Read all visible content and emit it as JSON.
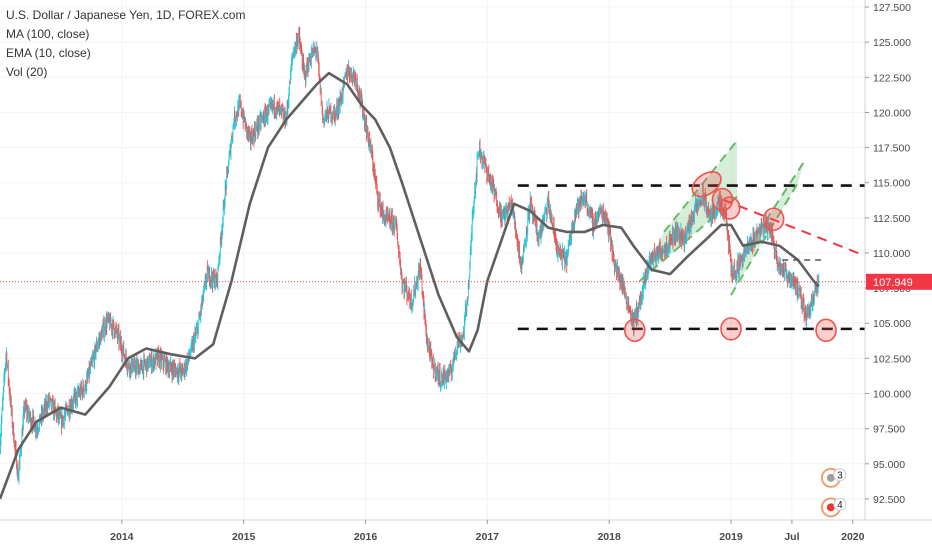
{
  "legend": {
    "title": "U.S. Dollar / Japanese Yen, 1D, FOREX.com",
    "ma": "MA (100, close)",
    "ema": "EMA (10, close)",
    "vol": "Vol (20)"
  },
  "colors": {
    "up": "#26c6da",
    "down": "#ef5350",
    "ma_line": "#5f5f5f",
    "ema_line": "#6d6d6d",
    "price_line": "#f23645",
    "channel_fill": "#a5d6a7",
    "channel_dash": "#66bb6a",
    "marker": "#ef5350",
    "level_line": "#111111"
  },
  "chart_data": {
    "type": "line",
    "symbol": "U.S. Dollar / Japanese Yen",
    "timeframe": "1D",
    "ylim": [
      91,
      128
    ],
    "y_ticks": [
      "127.500",
      "125.000",
      "122.500",
      "120.000",
      "117.500",
      "115.000",
      "112.500",
      "110.000",
      "107.500",
      "105.000",
      "102.500",
      "100.000",
      "97.500",
      "95.000",
      "92.500"
    ],
    "y_tick_values": [
      127.5,
      125,
      122.5,
      120,
      117.5,
      115,
      112.5,
      110,
      107.5,
      105,
      102.5,
      100,
      97.5,
      95,
      92.5
    ],
    "xlim": [
      2013.0,
      2020.1
    ],
    "x_ticks": [
      "2014",
      "2015",
      "2016",
      "2017",
      "2018",
      "2019",
      "Jul",
      "2020"
    ],
    "x_tick_values": [
      2014.0,
      2015.0,
      2016.0,
      2017.0,
      2018.0,
      2019.0,
      2019.5,
      2020.0
    ],
    "last_price": 107.949,
    "last_price_label": "107.949",
    "price_path": [
      [
        2013.0,
        96.5
      ],
      [
        2013.05,
        103.0
      ],
      [
        2013.1,
        98.0
      ],
      [
        2013.15,
        94.0
      ],
      [
        2013.2,
        99.0
      ],
      [
        2013.3,
        97.5
      ],
      [
        2013.4,
        99.5
      ],
      [
        2013.5,
        98.0
      ],
      [
        2013.6,
        99.5
      ],
      [
        2013.7,
        100.5
      ],
      [
        2013.8,
        103.5
      ],
      [
        2013.88,
        105.2
      ],
      [
        2013.95,
        104.5
      ],
      [
        2014.05,
        102.0
      ],
      [
        2014.15,
        101.8
      ],
      [
        2014.3,
        102.5
      ],
      [
        2014.4,
        101.8
      ],
      [
        2014.5,
        101.5
      ],
      [
        2014.55,
        102.5
      ],
      [
        2014.62,
        104.5
      ],
      [
        2014.7,
        108.5
      ],
      [
        2014.78,
        108.0
      ],
      [
        2014.85,
        114.5
      ],
      [
        2014.92,
        119.5
      ],
      [
        2014.97,
        120.5
      ],
      [
        2015.05,
        118.0
      ],
      [
        2015.15,
        119.5
      ],
      [
        2015.25,
        120.5
      ],
      [
        2015.35,
        119.5
      ],
      [
        2015.4,
        124.0
      ],
      [
        2015.45,
        125.5
      ],
      [
        2015.5,
        122.5
      ],
      [
        2015.55,
        124.0
      ],
      [
        2015.6,
        124.5
      ],
      [
        2015.65,
        119.5
      ],
      [
        2015.7,
        120.0
      ],
      [
        2015.75,
        119.8
      ],
      [
        2015.8,
        121.0
      ],
      [
        2015.85,
        123.0
      ],
      [
        2015.92,
        122.5
      ],
      [
        2015.97,
        120.5
      ],
      [
        2016.05,
        117.0
      ],
      [
        2016.1,
        114.0
      ],
      [
        2016.15,
        112.5
      ],
      [
        2016.25,
        112.0
      ],
      [
        2016.3,
        108.0
      ],
      [
        2016.38,
        106.5
      ],
      [
        2016.45,
        109.0
      ],
      [
        2016.5,
        104.0
      ],
      [
        2016.55,
        102.0
      ],
      [
        2016.62,
        101.0
      ],
      [
        2016.7,
        101.5
      ],
      [
        2016.75,
        103.5
      ],
      [
        2016.8,
        104.0
      ],
      [
        2016.85,
        108.0
      ],
      [
        2016.88,
        113.0
      ],
      [
        2016.93,
        117.5
      ],
      [
        2016.97,
        116.5
      ],
      [
        2017.05,
        114.5
      ],
      [
        2017.12,
        112.5
      ],
      [
        2017.2,
        113.5
      ],
      [
        2017.28,
        109.0
      ],
      [
        2017.35,
        113.5
      ],
      [
        2017.42,
        111.0
      ],
      [
        2017.5,
        113.5
      ],
      [
        2017.58,
        110.0
      ],
      [
        2017.65,
        109.5
      ],
      [
        2017.72,
        113.0
      ],
      [
        2017.8,
        114.0
      ],
      [
        2017.87,
        112.0
      ],
      [
        2017.93,
        113.0
      ],
      [
        2017.98,
        112.5
      ],
      [
        2018.05,
        109.0
      ],
      [
        2018.1,
        108.0
      ],
      [
        2018.15,
        106.5
      ],
      [
        2018.2,
        105.0
      ],
      [
        2018.27,
        107.0
      ],
      [
        2018.33,
        109.5
      ],
      [
        2018.4,
        110.0
      ],
      [
        2018.47,
        110.5
      ],
      [
        2018.55,
        111.5
      ],
      [
        2018.62,
        111.0
      ],
      [
        2018.7,
        113.0
      ],
      [
        2018.77,
        114.0
      ],
      [
        2018.83,
        112.5
      ],
      [
        2018.9,
        113.5
      ],
      [
        2018.96,
        112.5
      ],
      [
        2019.0,
        109.0
      ],
      [
        2019.03,
        108.5
      ],
      [
        2019.08,
        109.5
      ],
      [
        2019.15,
        110.5
      ],
      [
        2019.22,
        111.5
      ],
      [
        2019.28,
        112.0
      ],
      [
        2019.33,
        111.5
      ],
      [
        2019.38,
        109.5
      ],
      [
        2019.45,
        108.5
      ],
      [
        2019.52,
        108.0
      ],
      [
        2019.58,
        106.5
      ],
      [
        2019.62,
        105.5
      ],
      [
        2019.67,
        106.8
      ],
      [
        2019.72,
        107.9
      ]
    ],
    "ma_path": [
      [
        2013.0,
        92.5
      ],
      [
        2013.15,
        96.0
      ],
      [
        2013.3,
        98.0
      ],
      [
        2013.5,
        99.0
      ],
      [
        2013.7,
        98.5
      ],
      [
        2013.9,
        100.5
      ],
      [
        2014.05,
        102.5
      ],
      [
        2014.2,
        103.2
      ],
      [
        2014.4,
        102.8
      ],
      [
        2014.6,
        102.5
      ],
      [
        2014.75,
        103.5
      ],
      [
        2014.9,
        108.0
      ],
      [
        2015.05,
        113.5
      ],
      [
        2015.2,
        117.5
      ],
      [
        2015.35,
        119.5
      ],
      [
        2015.5,
        121.0
      ],
      [
        2015.6,
        122.0
      ],
      [
        2015.7,
        122.8
      ],
      [
        2015.85,
        122.0
      ],
      [
        2015.97,
        120.5
      ],
      [
        2016.08,
        119.5
      ],
      [
        2016.2,
        117.5
      ],
      [
        2016.3,
        115.0
      ],
      [
        2016.45,
        111.0
      ],
      [
        2016.6,
        107.0
      ],
      [
        2016.75,
        104.0
      ],
      [
        2016.85,
        103.0
      ],
      [
        2016.92,
        104.5
      ],
      [
        2017.0,
        108.0
      ],
      [
        2017.12,
        111.0
      ],
      [
        2017.22,
        113.5
      ],
      [
        2017.35,
        113.0
      ],
      [
        2017.5,
        111.8
      ],
      [
        2017.65,
        111.5
      ],
      [
        2017.8,
        111.5
      ],
      [
        2017.95,
        112.0
      ],
      [
        2018.1,
        111.8
      ],
      [
        2018.2,
        110.5
      ],
      [
        2018.35,
        108.8
      ],
      [
        2018.5,
        108.5
      ],
      [
        2018.65,
        109.8
      ],
      [
        2018.8,
        111.0
      ],
      [
        2018.92,
        112.0
      ],
      [
        2019.0,
        112.0
      ],
      [
        2019.1,
        110.5
      ],
      [
        2019.25,
        110.8
      ],
      [
        2019.4,
        110.5
      ],
      [
        2019.55,
        109.5
      ],
      [
        2019.68,
        108.0
      ],
      [
        2019.72,
        107.6
      ]
    ],
    "levels": [
      {
        "name": "resistance",
        "value": 114.8,
        "x_from": 2017.25,
        "x_to": 2020.1
      },
      {
        "name": "support",
        "value": 104.6,
        "x_from": 2017.25,
        "x_to": 2020.1
      },
      {
        "name": "minor-resistance",
        "value": 109.5,
        "x_from": 2019.42,
        "x_to": 2019.78
      }
    ],
    "trendline": {
      "from": [
        2018.93,
        113.8
      ],
      "to": [
        2020.1,
        109.8
      ]
    },
    "channels": [
      {
        "lower": [
          [
            2018.25,
            108.0
          ],
          [
            2019.05,
            114.0
          ]
        ],
        "upper": [
          [
            2018.45,
            111.5
          ],
          [
            2019.05,
            118.0
          ]
        ]
      },
      {
        "lower": [
          [
            2019.0,
            107.0
          ],
          [
            2019.55,
            115.0
          ]
        ],
        "upper": [
          [
            2019.15,
            110.5
          ],
          [
            2019.6,
            116.5
          ]
        ]
      }
    ],
    "markers": [
      {
        "name": "low-2018",
        "x": 2018.21,
        "y": 104.5
      },
      {
        "name": "low-2019-jan",
        "x": 2019.0,
        "y": 104.6
      },
      {
        "name": "low-2019-aug",
        "x": 2019.78,
        "y": 104.5
      },
      {
        "name": "top-2018-oct",
        "x": 2018.8,
        "y": 114.9
      },
      {
        "name": "top-2018-nov",
        "x": 2018.93,
        "y": 113.8
      },
      {
        "name": "top-2018-dec",
        "x": 2018.99,
        "y": 113.2
      },
      {
        "name": "top-2019-apr",
        "x": 2019.35,
        "y": 112.4
      }
    ],
    "events": [
      {
        "name": "us-event",
        "x": 2019.82,
        "y": 94.0,
        "count": "3"
      },
      {
        "name": "jp-event",
        "x": 2019.82,
        "y": 91.9,
        "count": "4"
      }
    ]
  }
}
